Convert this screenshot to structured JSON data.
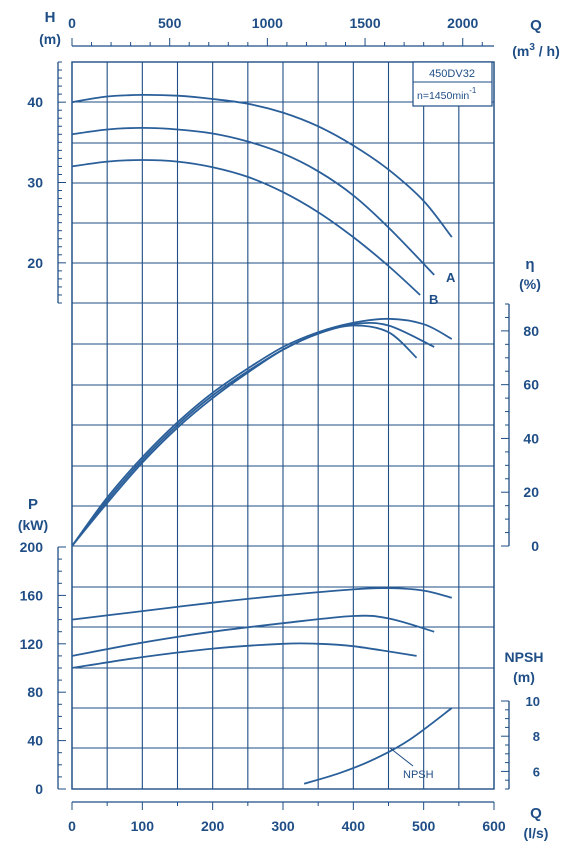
{
  "colors": {
    "background": "#ffffff",
    "line": "#1f4e86",
    "curve": "#2a5f9a"
  },
  "chart_data": {
    "type": "line",
    "model_label": "450DV32",
    "speed_label": "n=1450min",
    "speed_exponent": "-1",
    "axes": {
      "q_top": {
        "label": "Q",
        "unit_prefix": "(m",
        "unit_exp": "3",
        "unit_suffix": " / h)",
        "ticks": [
          0,
          500,
          1000,
          1500,
          2000
        ],
        "range": [
          0,
          2160
        ]
      },
      "q_bottom": {
        "label": "Q",
        "unit": "(l/s)",
        "ticks": [
          0,
          100,
          200,
          300,
          400,
          500,
          600
        ],
        "range": [
          0,
          600
        ]
      },
      "head": {
        "label": "H",
        "unit": "(m)",
        "ticks": [
          20,
          30,
          40
        ],
        "range": [
          15,
          45
        ]
      },
      "efficiency": {
        "label": "η",
        "unit": "(%)",
        "ticks": [
          0,
          20,
          40,
          60,
          80
        ],
        "range": [
          0,
          90
        ]
      },
      "power": {
        "label": "P",
        "unit": "(kW)",
        "ticks": [
          0,
          40,
          80,
          120,
          160,
          200
        ],
        "range": [
          0,
          200
        ]
      },
      "npsh": {
        "label": "NPSH",
        "unit": "(m)",
        "ticks": [
          6,
          8,
          10
        ],
        "range": [
          5,
          10
        ]
      }
    },
    "curve_labels": {
      "a": "A",
      "b": "B",
      "npsh": "NPSH"
    },
    "series": [
      {
        "group": "head",
        "x": [
          0,
          50,
          100,
          150,
          200,
          250,
          300,
          350,
          400,
          450,
          500,
          540
        ],
        "y": [
          40,
          40.7,
          40.9,
          40.8,
          40.4,
          39.8,
          38.7,
          37.0,
          34.6,
          31.6,
          27.7,
          23.2
        ]
      },
      {
        "group": "head",
        "name": "A",
        "x": [
          0,
          50,
          100,
          150,
          200,
          250,
          300,
          350,
          400,
          450,
          515
        ],
        "y": [
          36,
          36.6,
          36.8,
          36.6,
          36.1,
          35.1,
          33.6,
          31.4,
          28.4,
          24.4,
          18.5
        ]
      },
      {
        "group": "head",
        "name": "B",
        "x": [
          0,
          50,
          100,
          150,
          200,
          250,
          300,
          350,
          400,
          450,
          495
        ],
        "y": [
          32,
          32.6,
          32.8,
          32.6,
          31.9,
          30.7,
          28.8,
          26.3,
          23.2,
          19.6,
          16.0
        ]
      },
      {
        "group": "efficiency",
        "x": [
          0,
          50,
          100,
          150,
          200,
          250,
          300,
          350,
          400,
          450,
          500,
          540
        ],
        "y": [
          0,
          18,
          33,
          46,
          57,
          66,
          74,
          79.5,
          83,
          84.5,
          82.5,
          77
        ]
      },
      {
        "group": "efficiency",
        "x": [
          0,
          50,
          100,
          150,
          200,
          250,
          300,
          350,
          400,
          450,
          515
        ],
        "y": [
          0,
          17,
          32,
          45,
          56,
          65,
          73,
          79,
          82.5,
          82,
          74
        ]
      },
      {
        "group": "efficiency",
        "x": [
          0,
          50,
          100,
          150,
          200,
          250,
          300,
          350,
          400,
          450,
          490
        ],
        "y": [
          0,
          16,
          31,
          44,
          55,
          64.5,
          73,
          79,
          82,
          79.5,
          70
        ]
      },
      {
        "group": "power",
        "x": [
          0,
          100,
          200,
          300,
          400,
          450,
          500,
          540
        ],
        "y": [
          140,
          147,
          154,
          160,
          165,
          166,
          164,
          158
        ]
      },
      {
        "group": "power",
        "x": [
          0,
          100,
          200,
          300,
          400,
          450,
          515
        ],
        "y": [
          110,
          121,
          130,
          137,
          143,
          141,
          130
        ]
      },
      {
        "group": "power",
        "x": [
          0,
          100,
          200,
          300,
          350,
          400,
          490
        ],
        "y": [
          100,
          109,
          116,
          120,
          120,
          118,
          110
        ]
      },
      {
        "group": "npsh",
        "name": "NPSH",
        "x": [
          330,
          380,
          430,
          480,
          540
        ],
        "y": [
          5.3,
          5.9,
          6.7,
          7.8,
          9.6
        ]
      }
    ]
  }
}
